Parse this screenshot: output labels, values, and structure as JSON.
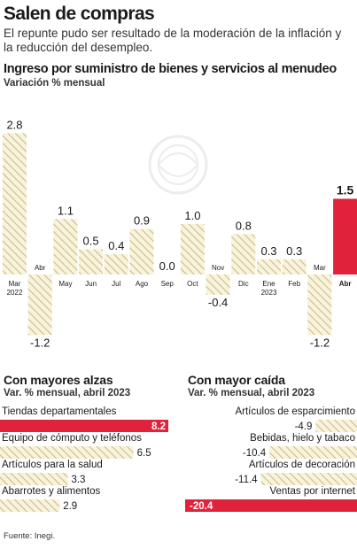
{
  "header": {
    "title": "Salen de compras",
    "subtitle": "El repunte pudo ser resultado de la moderación de la inflación y la reducción del desempleo."
  },
  "colors": {
    "accent": "#e0233a",
    "hatch_stroke": "#cdbd8a",
    "hatch_bg": "#f8f3dc",
    "text": "#1a1a1a"
  },
  "chart_data": [
    {
      "type": "bar",
      "title": "Ingreso por suministro de bienes y servicios al menudeo",
      "subtitle": "Variación % mensual",
      "categories": [
        "Mar\n2022",
        "Abr",
        "May",
        "Jun",
        "Jul",
        "Ago",
        "Sep",
        "Oct",
        "Nov",
        "Dic",
        "Ene\n2023",
        "Feb",
        "Mar",
        "Abr"
      ],
      "values": [
        2.8,
        -1.2,
        1.1,
        0.5,
        0.4,
        0.9,
        0.0,
        1.0,
        -0.4,
        0.8,
        0.3,
        0.3,
        -1.2,
        1.5
      ],
      "value_labels": [
        "2.8",
        "-1.2",
        "1.1",
        "0.5",
        "0.4",
        "0.9",
        "0.0",
        "1.0",
        "-0.4",
        "0.8",
        "0.3",
        "0.3",
        "-1.2",
        "1.5"
      ],
      "highlight_index": 13
    },
    {
      "type": "bar",
      "orientation": "horizontal",
      "title": "Con mayores alzas",
      "subtitle": "Var. % mensual, abril 2023",
      "categories": [
        "Tiendas departamentales",
        "Equipo de cómputo y teléfonos",
        "Artículos para la salud",
        "Abarrotes y alimentos"
      ],
      "values": [
        8.2,
        6.5,
        3.3,
        2.9
      ],
      "value_labels": [
        "8.2",
        "6.5",
        "3.3",
        "2.9"
      ],
      "highlight_index": 0
    },
    {
      "type": "bar",
      "orientation": "horizontal",
      "title": "Con mayor caída",
      "subtitle": "Var. % mensual, abril 2023",
      "categories": [
        "Artículos de esparcimiento",
        "Bebidas, hielo y tabaco",
        "Artículos de decoración",
        "Ventas por internet"
      ],
      "values": [
        -4.9,
        -10.4,
        -11.4,
        -20.4
      ],
      "value_labels": [
        "-4.9",
        "-10.4",
        "-11.4",
        "-20.4"
      ],
      "highlight_index": 3
    }
  ],
  "footer": {
    "source": "Fuente: Inegi."
  }
}
